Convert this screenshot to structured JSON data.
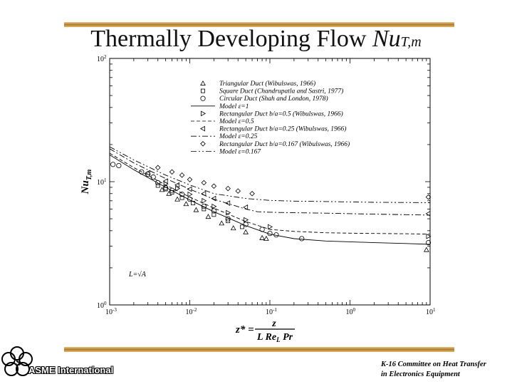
{
  "slide": {
    "title_main": "Thermally Developing Flow ",
    "title_nu": "Nu",
    "title_sub": "T,m",
    "org_name": "ASME International",
    "committee_line1": "K-16 Committee on Heat Transfer",
    "committee_line2": "in Electronics Equipment"
  },
  "chart_data": {
    "type": "scatter",
    "xscale": "log",
    "yscale": "log",
    "xlim": [
      0.001,
      10
    ],
    "ylim": [
      1,
      100
    ],
    "xticks": [
      {
        "value": 0.001,
        "base": "10",
        "exp": "-3"
      },
      {
        "value": 0.01,
        "base": "10",
        "exp": "-2"
      },
      {
        "value": 0.1,
        "base": "10",
        "exp": "-1"
      },
      {
        "value": 1,
        "base": "10",
        "exp": "0"
      },
      {
        "value": 10,
        "base": "10",
        "exp": "1"
      }
    ],
    "yticks": [
      {
        "value": 1,
        "base": "10",
        "exp": "0"
      },
      {
        "value": 10,
        "base": "10",
        "exp": "1"
      },
      {
        "value": 100,
        "base": "10",
        "exp": "2"
      }
    ],
    "ylabel": "Nu",
    "ylabel_sub": "T,m",
    "xlabel_prefix": "z* =",
    "xlabel_num": "z",
    "xlabel_den": "L Re",
    "xlabel_den_sub": "L",
    "xlabel_den_tail": " Pr",
    "annotation": "L=√A",
    "legend_position": "top-center",
    "legend": [
      {
        "marker": "triangle-up",
        "label": "Triangular Duct (Wibulswas, 1966)"
      },
      {
        "marker": "square",
        "label": "Square Duct (Chandrupatla and Sastri, 1977)"
      },
      {
        "marker": "circle",
        "label": "Circular Duct (Shah and London, 1978)"
      },
      {
        "line": "solid",
        "label": "Model ε=1"
      },
      {
        "marker": "triangle-right",
        "label": "Rectangular Duct b/a=0.5 (Wibulswas, 1966)"
      },
      {
        "line": "dashed",
        "label": "Model ε=0.5"
      },
      {
        "marker": "triangle-left",
        "label": "Rectangular Duct b/a=0.25 (Wibulswas, 1966)"
      },
      {
        "line": "dashdot",
        "label": "Model ε=0.25"
      },
      {
        "marker": "diamond",
        "label": "Rectangular Duct b/a=0.167 (Wibulswas, 1966)"
      },
      {
        "line": "dashdotdot",
        "label": "Model ε=0.167"
      }
    ],
    "lines": [
      {
        "style": "solid",
        "x": [
          0.001,
          0.002,
          0.005,
          0.01,
          0.02,
          0.05,
          0.1,
          0.2,
          0.5,
          1,
          2,
          5,
          10
        ],
        "y": [
          16.5,
          12.5,
          9.0,
          7.1,
          5.7,
          4.4,
          3.75,
          3.45,
          3.3,
          3.25,
          3.2,
          3.15,
          3.1
        ]
      },
      {
        "style": "dashed",
        "x": [
          0.001,
          0.002,
          0.005,
          0.01,
          0.02,
          0.05,
          0.1,
          0.2,
          0.5,
          1,
          2,
          5,
          10
        ],
        "y": [
          17.0,
          13.0,
          9.4,
          7.5,
          6.1,
          4.75,
          4.1,
          3.95,
          3.85,
          3.82,
          3.8,
          3.78,
          3.75
        ]
      },
      {
        "style": "dashdot",
        "x": [
          0.001,
          0.002,
          0.005,
          0.01,
          0.02,
          0.05,
          0.07,
          0.1,
          0.2,
          0.5,
          1,
          2,
          5,
          10
        ],
        "y": [
          18.5,
          14.2,
          10.6,
          8.7,
          7.2,
          6.0,
          5.7,
          5.65,
          5.6,
          5.55,
          5.5,
          5.45,
          5.4,
          5.35
        ]
      },
      {
        "style": "dashdotdot",
        "x": [
          0.001,
          0.002,
          0.005,
          0.01,
          0.02,
          0.05,
          0.1,
          0.2,
          0.5,
          1,
          2,
          5,
          10
        ],
        "y": [
          19.2,
          15.0,
          11.3,
          9.4,
          8.0,
          7.3,
          7.05,
          6.95,
          6.9,
          6.85,
          6.8,
          6.78,
          6.75
        ]
      }
    ],
    "series": [
      {
        "marker": "triangle-up",
        "x": [
          0.0045,
          0.0055,
          0.007,
          0.009,
          0.012,
          0.017,
          0.025,
          0.035,
          0.05,
          0.08,
          0.09
        ],
        "y": [
          8.6,
          8.0,
          7.2,
          6.6,
          5.9,
          5.2,
          4.6,
          4.2,
          3.9,
          3.5,
          3.45
        ]
      },
      {
        "marker": "square",
        "x": [
          0.004,
          0.005,
          0.006,
          0.008,
          0.011,
          0.015,
          0.02,
          0.03,
          0.045
        ],
        "y": [
          9.3,
          8.7,
          8.2,
          7.4,
          6.7,
          6.0,
          5.4,
          4.8,
          4.3
        ]
      },
      {
        "marker": "circle",
        "x": [
          0.0011,
          0.0013,
          0.0025,
          0.003,
          0.0035,
          0.004,
          0.005,
          0.006,
          0.008,
          0.01,
          0.015,
          0.02,
          0.03,
          0.05,
          0.08,
          0.1,
          0.12,
          0.25,
          9.5
        ],
        "y": [
          13.8,
          13.5,
          12.0,
          11.5,
          10.9,
          9.8,
          8.9,
          8.5,
          7.9,
          7.2,
          6.3,
          5.8,
          5.0,
          4.5,
          4.1,
          3.8,
          3.7,
          3.45,
          3.2
        ]
      },
      {
        "marker": "triangle-right",
        "x": [
          0.005,
          0.007,
          0.01,
          0.015,
          0.02,
          0.03,
          0.05,
          0.1,
          9.5
        ],
        "y": [
          9.6,
          8.8,
          7.9,
          7.0,
          6.3,
          5.6,
          4.9,
          4.3,
          3.6
        ]
      },
      {
        "marker": "triangle-left",
        "x": [
          0.003,
          0.005,
          0.007,
          0.01,
          0.015,
          0.02,
          0.03,
          0.05,
          9.5
        ],
        "y": [
          11.8,
          10.1,
          9.4,
          8.7,
          8.0,
          7.3,
          6.7,
          6.2,
          5.5
        ]
      },
      {
        "marker": "diamond",
        "x": [
          0.004,
          0.006,
          0.008,
          0.01,
          0.015,
          0.02,
          0.03,
          0.04,
          0.06,
          9.5
        ],
        "y": [
          13.0,
          12.0,
          11.3,
          10.4,
          9.8,
          9.2,
          8.8,
          8.4,
          8.0,
          7.5
        ]
      }
    ],
    "extra_points": [
      {
        "marker": "triangle-up",
        "x": 9.0,
        "y": 2.8
      }
    ]
  }
}
